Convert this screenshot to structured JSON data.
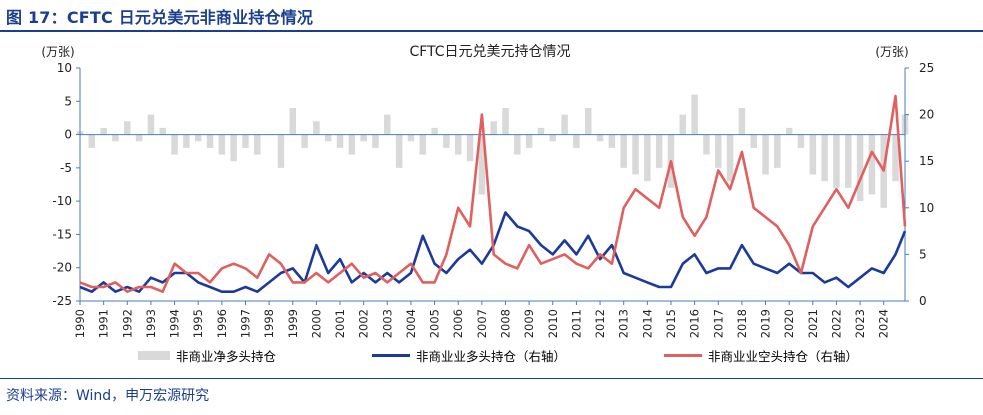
{
  "figure": {
    "title": "图 17：CFTC 日元兑美元非商业持仓情况",
    "source": "资料来源：Wind，申万宏源研究"
  },
  "chart_data": {
    "type": "line",
    "title": "CFTC日元兑美元持仓情况",
    "left_unit": "(万张)",
    "right_unit": "(万张)",
    "x_ticks": [
      "1990",
      "1991",
      "1992",
      "1993",
      "1994",
      "1995",
      "1996",
      "1997",
      "1998",
      "1999",
      "2000",
      "2001",
      "2002",
      "2003",
      "2004",
      "2005",
      "2006",
      "2007",
      "2008",
      "2009",
      "2010",
      "2011",
      "2012",
      "2013",
      "2014",
      "2015",
      "2016",
      "2017",
      "2018",
      "2019",
      "2020",
      "2021",
      "2022",
      "2023",
      "2024"
    ],
    "x_range": [
      1990,
      2024.9
    ],
    "y_left": {
      "range": [
        -25,
        10
      ],
      "ticks": [
        10,
        5,
        0,
        -5,
        -10,
        -15,
        -20,
        -25
      ]
    },
    "y_right": {
      "range": [
        0,
        25
      ],
      "ticks": [
        25,
        20,
        15,
        10,
        5,
        0
      ]
    },
    "grid": false,
    "legend_position": "bottom",
    "colors": {
      "net": "#d9d9d9",
      "long": "#1b3a9a",
      "short": "#e0605f"
    },
    "series": [
      {
        "name": "非商业净多头持仓",
        "axis": "left",
        "style": "bar",
        "x": [
          1990,
          1990.5,
          1991,
          1991.5,
          1992,
          1992.5,
          1993,
          1993.5,
          1994,
          1994.5,
          1995,
          1995.5,
          1996,
          1996.5,
          1997,
          1997.5,
          1998,
          1998.5,
          1999,
          1999.5,
          2000,
          2000.5,
          2001,
          2001.5,
          2002,
          2002.5,
          2003,
          2003.5,
          2004,
          2004.5,
          2005,
          2005.5,
          2006,
          2006.5,
          2007,
          2007.5,
          2008,
          2008.5,
          2009,
          2009.5,
          2010,
          2010.5,
          2011,
          2011.5,
          2012,
          2012.5,
          2013,
          2013.5,
          2014,
          2014.5,
          2015,
          2015.5,
          2016,
          2016.5,
          2017,
          2017.5,
          2018,
          2018.5,
          2019,
          2019.5,
          2020,
          2020.5,
          2021,
          2021.5,
          2022,
          2022.5,
          2023,
          2023.5,
          2024,
          2024.5,
          2024.9
        ],
        "values": [
          0.5,
          -2,
          1,
          -1,
          2,
          -1,
          3,
          1,
          -3,
          -2,
          -1,
          -2,
          -3,
          -4,
          -2,
          -3,
          0,
          -5,
          4,
          -2,
          2,
          -1,
          -2,
          -3,
          -1,
          -2,
          3,
          -5,
          -1,
          -3,
          1,
          -2,
          -3,
          -4,
          -9,
          2,
          4,
          -3,
          -2,
          1,
          -1,
          3,
          -2,
          4,
          -1,
          -2,
          -5,
          -6,
          -7,
          -5,
          -8,
          3,
          6,
          -3,
          -5,
          -7,
          4,
          -2,
          -6,
          -5,
          1,
          -2,
          -6,
          -7,
          -8,
          -8,
          -10,
          -9,
          -11,
          -7,
          3
        ]
      },
      {
        "name": "非商业业多头持仓（右轴）",
        "axis": "right",
        "style": "line",
        "x": [
          1990,
          1990.5,
          1991,
          1991.5,
          1992,
          1992.5,
          1993,
          1993.5,
          1994,
          1994.5,
          1995,
          1995.5,
          1996,
          1996.5,
          1997,
          1997.5,
          1998,
          1998.5,
          1999,
          1999.5,
          2000,
          2000.5,
          2001,
          2001.5,
          2002,
          2002.5,
          2003,
          2003.5,
          2004,
          2004.5,
          2005,
          2005.5,
          2006,
          2006.5,
          2007,
          2007.5,
          2008,
          2008.5,
          2009,
          2009.5,
          2010,
          2010.5,
          2011,
          2011.5,
          2012,
          2012.5,
          2013,
          2013.5,
          2014,
          2014.5,
          2015,
          2015.5,
          2016,
          2016.5,
          2017,
          2017.5,
          2018,
          2018.5,
          2019,
          2019.5,
          2020,
          2020.5,
          2021,
          2021.5,
          2022,
          2022.5,
          2023,
          2023.5,
          2024,
          2024.5,
          2024.9
        ],
        "values": [
          1.5,
          1,
          2,
          1,
          1.5,
          1,
          2.5,
          2,
          3,
          3,
          2,
          1.5,
          1,
          1,
          1.5,
          1,
          2,
          3,
          3.5,
          2,
          6,
          3,
          4.5,
          2,
          3,
          2,
          3,
          2,
          3,
          7,
          4,
          3,
          4.5,
          5.5,
          4,
          6,
          9.5,
          8,
          7.5,
          6,
          5,
          6.5,
          5,
          7,
          4.5,
          6,
          3,
          2.5,
          2,
          1.5,
          1.5,
          4,
          5,
          3,
          3.5,
          3.5,
          6,
          4,
          3.5,
          3,
          4,
          3,
          3,
          2,
          2.5,
          1.5,
          2.5,
          3.5,
          3,
          5,
          7.5
        ]
      },
      {
        "name": "非商业业空头持仓（右轴）",
        "axis": "right",
        "style": "line",
        "x": [
          1990,
          1990.5,
          1991,
          1991.5,
          1992,
          1992.5,
          1993,
          1993.5,
          1994,
          1994.5,
          1995,
          1995.5,
          1996,
          1996.5,
          1997,
          1997.5,
          1998,
          1998.5,
          1999,
          1999.5,
          2000,
          2000.5,
          2001,
          2001.5,
          2002,
          2002.5,
          2003,
          2003.5,
          2004,
          2004.5,
          2005,
          2005.5,
          2006,
          2006.5,
          2007,
          2007.5,
          2008,
          2008.5,
          2009,
          2009.5,
          2010,
          2010.5,
          2011,
          2011.5,
          2012,
          2012.5,
          2013,
          2013.5,
          2014,
          2014.5,
          2015,
          2015.5,
          2016,
          2016.5,
          2017,
          2017.5,
          2018,
          2018.5,
          2019,
          2019.5,
          2020,
          2020.5,
          2021,
          2021.5,
          2022,
          2022.5,
          2023,
          2023.5,
          2024,
          2024.5,
          2024.9
        ],
        "values": [
          2,
          1.5,
          1.5,
          2,
          1,
          1.5,
          1.5,
          1,
          4,
          3,
          3,
          2,
          3.5,
          4,
          3.5,
          2.5,
          5,
          4,
          2,
          2,
          3,
          2,
          3,
          4,
          2.5,
          3,
          2,
          3,
          4,
          2,
          2,
          5,
          10,
          8,
          20,
          5,
          4,
          3.5,
          6,
          4,
          4.5,
          5,
          4,
          3.5,
          5,
          4,
          10,
          12,
          11,
          10,
          15,
          9,
          7,
          9,
          14,
          12,
          16,
          10,
          9,
          8,
          6,
          3,
          8,
          10,
          12,
          10,
          13,
          16,
          14,
          22,
          8
        ]
      }
    ]
  }
}
